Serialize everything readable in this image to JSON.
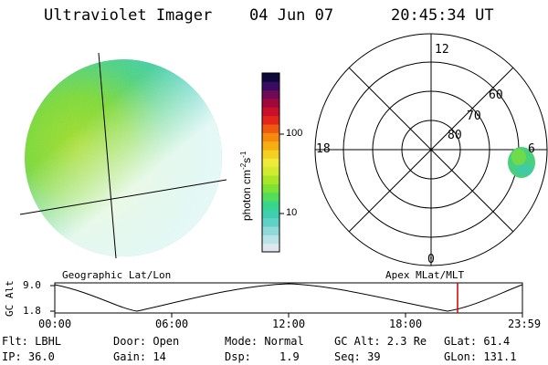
{
  "header": {
    "instrument": "Ultraviolet Imager",
    "date": "04 Jun 07",
    "time": "20:45:34 UT"
  },
  "colorbar": {
    "unit_label": "photon cm",
    "unit_exp1": "-2",
    "unit_mid": "s",
    "unit_exp2": "-1",
    "ticks": [
      "100",
      "10"
    ],
    "colors": [
      "#dfe8ee",
      "#b9e3e8",
      "#8fd9d9",
      "#5fd1c6",
      "#3ecfae",
      "#38d68a",
      "#52dd5b",
      "#7ee234",
      "#a8e627",
      "#d2ea2f",
      "#eeea3a",
      "#f5d020",
      "#f6ad12",
      "#f58a0e",
      "#ef5a12",
      "#e2261a",
      "#c8102a",
      "#a0083c",
      "#6e0a58",
      "#3a0b62",
      "#0f0a3a"
    ]
  },
  "polar_plot": {
    "mlt_labels": [
      "12",
      "18",
      "6",
      "0"
    ],
    "lat_labels": [
      "60",
      "70",
      "80"
    ]
  },
  "timeline": {
    "left_label": "Geographic Lat/Lon",
    "right_label": "Apex MLat/MLT",
    "y_axis_title": "GC Alt",
    "y_ticks": [
      "9.0",
      "1.8"
    ],
    "x_ticks": [
      "00:00",
      "06:00",
      "12:00",
      "18:00",
      "23:59"
    ],
    "current_marker_color": "#cc0000"
  },
  "footer": {
    "flt": "Flt: LBHL",
    "ip": "IP: 36.0",
    "door": "Door: Open",
    "gain": "Gain: 14",
    "mode": "Mode: Normal",
    "dsp_label": "Dsp:",
    "dsp_value": "1.9",
    "gcalt": "GC Alt: 2.3 Re",
    "seq": "Seq: 39",
    "glat": "GLat:  61.4",
    "glon": "GLon: 131.1"
  }
}
